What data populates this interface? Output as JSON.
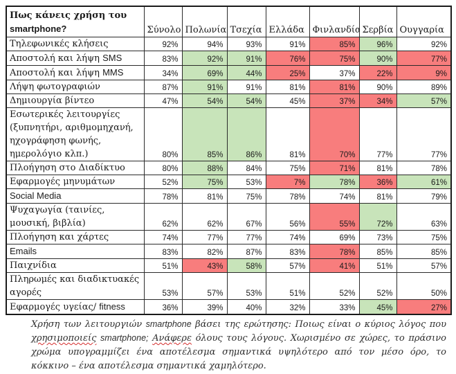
{
  "colors": {
    "green_highlight": "#c8e4ba",
    "red_highlight": "#f87d7d",
    "spellcheck_underline": "#d42a2a",
    "border": "#2a2a2a"
  },
  "table": {
    "question": "Πως κάνεις χρήση του smartphone?",
    "columns": [
      "Σύνολο",
      "Πολωνία",
      "Τσεχία",
      "Ελλάδα",
      "Φινλανδία",
      "Σερβία",
      "Ουγγαρία"
    ],
    "highlight_legend": {
      "green": "σημαντικά υψηλότερο από τον μέσο όρο",
      "red": "σημαντικά χαμηλότερο"
    },
    "rows": [
      {
        "label": "Τηλεφωνικές κλήσεις",
        "values": [
          "92%",
          "94%",
          "93%",
          "91%",
          "85%",
          "96%",
          "92%"
        ],
        "highlights": [
          "",
          "",
          "",
          "",
          "red",
          "green",
          ""
        ]
      },
      {
        "label": "Αποστολή και λήψη SMS",
        "values": [
          "83%",
          "92%",
          "91%",
          "76%",
          "75%",
          "90%",
          "77%"
        ],
        "highlights": [
          "",
          "green",
          "green",
          "red",
          "red",
          "green",
          "red"
        ]
      },
      {
        "label": "Αποστολή και λήψη MMS",
        "values": [
          "34%",
          "69%",
          "44%",
          "25%",
          "37%",
          "22%",
          "9%"
        ],
        "highlights": [
          "",
          "green",
          "green",
          "red",
          "",
          "red",
          "red"
        ]
      },
      {
        "label": "Λήψη φωτογραφιών",
        "values": [
          "87%",
          "91%",
          "91%",
          "81%",
          "81%",
          "90%",
          "89%"
        ],
        "highlights": [
          "",
          "green",
          "",
          "",
          "red",
          "",
          ""
        ]
      },
      {
        "label": "Δημιουργία βίντεο",
        "values": [
          "47%",
          "54%",
          "54%",
          "45%",
          "37%",
          "34%",
          "57%"
        ],
        "highlights": [
          "",
          "green",
          "green",
          "",
          "red",
          "red",
          "green"
        ]
      },
      {
        "label": "Εσωτερικές λειτουργίες (ξυπνητήρι, αριθμομηχανή, ηχογράφηση φωνής, ημερολόγιο κλπ.)",
        "values": [
          "80%",
          "85%",
          "86%",
          "81%",
          "70%",
          "77%",
          "77%"
        ],
        "highlights": [
          "",
          "green",
          "green",
          "",
          "red",
          "",
          ""
        ]
      },
      {
        "label": "Πλοήγηση στο Διαδίκτυο",
        "values": [
          "80%",
          "88%",
          "84%",
          "75%",
          "71%",
          "81%",
          "78%"
        ],
        "highlights": [
          "",
          "green",
          "",
          "",
          "red",
          "",
          ""
        ]
      },
      {
        "label": "Εφαρμογές μηνυμάτων",
        "values": [
          "52%",
          "75%",
          "53%",
          "7%",
          "78%",
          "36%",
          "61%"
        ],
        "highlights": [
          "",
          "green",
          "",
          "red",
          "green",
          "red",
          "green"
        ]
      },
      {
        "label": "Social Media",
        "values": [
          "78%",
          "81%",
          "75%",
          "78%",
          "74%",
          "81%",
          "79%"
        ],
        "highlights": [
          "",
          "",
          "",
          "",
          "",
          "",
          ""
        ]
      },
      {
        "label": "Ψυχαγωγία (ταινίες, μουσική, βιβλία)",
        "values": [
          "62%",
          "62%",
          "67%",
          "56%",
          "55%",
          "72%",
          "63%"
        ],
        "highlights": [
          "",
          "",
          "",
          "",
          "red",
          "green",
          ""
        ]
      },
      {
        "label": "Πλοήγηση και χάρτες",
        "values": [
          "74%",
          "77%",
          "77%",
          "74%",
          "69%",
          "73%",
          "75%"
        ],
        "highlights": [
          "",
          "",
          "",
          "",
          "",
          "",
          ""
        ]
      },
      {
        "label": "Emails",
        "values": [
          "83%",
          "82%",
          "87%",
          "83%",
          "78%",
          "85%",
          "85%"
        ],
        "highlights": [
          "",
          "",
          "",
          "",
          "red",
          "",
          ""
        ]
      },
      {
        "label": "Παιχνίδια",
        "values": [
          "51%",
          "43%",
          "58%",
          "57%",
          "41%",
          "51%",
          "57%"
        ],
        "highlights": [
          "",
          "red",
          "green",
          "",
          "red",
          "",
          ""
        ]
      },
      {
        "label": "Πληρωμές και διαδικτυακές αγορές",
        "values": [
          "53%",
          "57%",
          "53%",
          "51%",
          "52%",
          "52%",
          "50%"
        ],
        "highlights": [
          "",
          "",
          "",
          "",
          "",
          "",
          ""
        ]
      },
      {
        "label": "Εφαρμογές υγείας/ fitness",
        "values": [
          "36%",
          "39%",
          "40%",
          "32%",
          "33%",
          "45%",
          "27%"
        ],
        "highlights": [
          "",
          "",
          "",
          "",
          "",
          "green",
          "red"
        ]
      }
    ]
  },
  "footnote": {
    "segments": [
      {
        "text": "Χρήση των λειτουργιών smartphone βάσει της ερώτησης: Ποιως είναι ο κύριος λόγος που ",
        "underline": false
      },
      {
        "text": "χρησιμοποιείς",
        "underline": true
      },
      {
        "text": " smartphone; ",
        "underline": false
      },
      {
        "text": "Ανάφερε",
        "underline": true
      },
      {
        "text": " όλους τους λόγους. Χωρισμένο σε χώρες, το πράσινο χρώμα υπογραμμίζει ένα αποτέλεσμα σημαντικά υψηλότερο από τον μέσο όρο, το κόκκινο – ένα αποτέλεσμα σημαντικά χαμηλότερο.",
        "underline": false
      }
    ]
  }
}
